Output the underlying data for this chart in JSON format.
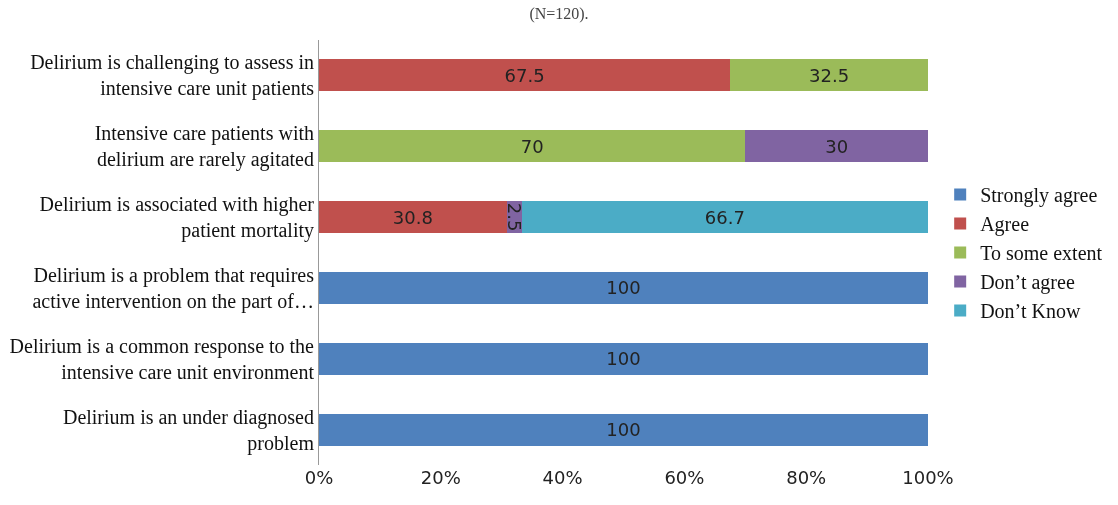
{
  "chart_data": {
    "type": "bar",
    "orientation": "horizontal",
    "stacked": true,
    "title": "(N=120).",
    "categories": [
      "Delirium is challenging to assess in intensive care unit patients",
      "Intensive care patients with delirium are rarely agitated",
      "Delirium is associated with higher patient mortality",
      "Delirium is a problem that requires active intervention on the part of…",
      "Delirium is a common response to the intensive care unit environment",
      "Delirium is an under diagnosed problem"
    ],
    "series": [
      {
        "name": "Strongly agree",
        "color": "#4f81bd",
        "values": [
          null,
          null,
          null,
          100,
          100,
          100
        ]
      },
      {
        "name": "Agree",
        "color": "#c0504d",
        "values": [
          67.5,
          null,
          30.8,
          null,
          null,
          null
        ]
      },
      {
        "name": "To some extent",
        "color": "#9bbb59",
        "values": [
          32.5,
          70,
          null,
          null,
          null,
          null
        ]
      },
      {
        "name": "Don’t agree",
        "color": "#8064a2",
        "values": [
          null,
          30,
          2.5,
          null,
          null,
          null
        ]
      },
      {
        "name": "Don’t Know",
        "color": "#4bacc6",
        "values": [
          null,
          null,
          66.7,
          null,
          null,
          null
        ]
      }
    ],
    "xlim": [
      0,
      100
    ],
    "xticks": [
      {
        "value": 0,
        "label": "0%"
      },
      {
        "value": 20,
        "label": "20%"
      },
      {
        "value": 40,
        "label": "40%"
      },
      {
        "value": 60,
        "label": "60%"
      },
      {
        "value": 80,
        "label": "80%"
      },
      {
        "value": 100,
        "label": "100%"
      }
    ],
    "data_labels": true,
    "legend": "right",
    "grid": false
  }
}
